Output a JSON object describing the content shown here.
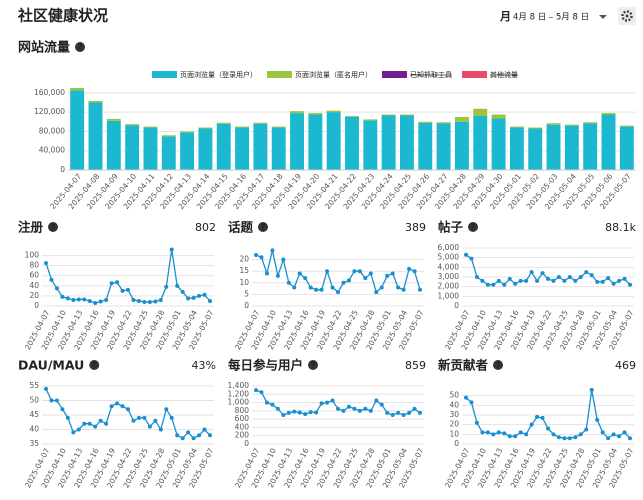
{
  "header": {
    "title": "社区健康状况",
    "period_unit": "月",
    "period": "4月 8 日 – 5月 8 日"
  },
  "help_icon": "?",
  "chart_data": [
    {
      "type": "stacked_bar",
      "title": "网站流量",
      "categories": [
        "2025-04-07",
        "2025-04-08",
        "2025-04-09",
        "2025-04-10",
        "2025-04-11",
        "2025-04-12",
        "2025-04-13",
        "2025-04-14",
        "2025-04-15",
        "2025-04-16",
        "2025-04-17",
        "2025-04-18",
        "2025-04-19",
        "2025-04-20",
        "2025-04-21",
        "2025-04-22",
        "2025-04-23",
        "2025-04-24",
        "2025-04-25",
        "2025-04-26",
        "2025-04-27",
        "2025-04-28",
        "2025-04-29",
        "2025-04-30",
        "2025-05-01",
        "2025-05-02",
        "2025-05-03",
        "2025-05-04",
        "2025-05-05",
        "2025-05-06",
        "2025-05-07"
      ],
      "series": [
        {
          "name": "页面浏览量（登录用户）",
          "color": "#1cb8d0",
          "values": [
            165000,
            140000,
            102000,
            93000,
            88000,
            70000,
            78000,
            86000,
            96000,
            88000,
            96000,
            88000,
            118000,
            115000,
            120000,
            110000,
            103000,
            113000,
            113000,
            98000,
            97000,
            100000,
            112000,
            107000,
            88000,
            86000,
            94000,
            92000,
            97000,
            115000,
            90000
          ]
        },
        {
          "name": "页面浏览量（匿名用户）",
          "color": "#9bc53d",
          "values": [
            5000,
            3000,
            4000,
            2000,
            2000,
            2000,
            2000,
            2000,
            2000,
            2000,
            2000,
            2000,
            4000,
            3000,
            3000,
            2000,
            2000,
            2000,
            2000,
            2000,
            2000,
            10000,
            15000,
            8000,
            2000,
            2000,
            3000,
            2000,
            2000,
            3000,
            2000
          ]
        },
        {
          "name": "已知抓取工具",
          "color": "#721d8d",
          "hidden": true
        },
        {
          "name": "其他流量",
          "color": "#e94b69",
          "hidden": true
        }
      ],
      "ylim": [
        0,
        170000
      ],
      "yticks": [
        0,
        {
          "value": 40000,
          "label": "40,000"
        },
        {
          "value": 80000,
          "label": "80,000"
        },
        {
          "value": 120000,
          "label": "120,000"
        },
        {
          "value": 160000,
          "label": "160,000"
        }
      ],
      "grid": true
    },
    {
      "type": "line",
      "title": "注册",
      "total": 802,
      "color": "#1a8fd0",
      "categories": [
        "2025-04-07",
        null,
        null,
        "2025-04-10",
        null,
        null,
        "2025-04-13",
        null,
        null,
        "2025-04-16",
        null,
        null,
        "2025-04-19",
        null,
        null,
        "2025-04-22",
        null,
        null,
        "2025-04-25",
        null,
        null,
        "2025-04-28",
        null,
        null,
        "2025-05-01",
        null,
        null,
        "2025-05-04",
        null,
        null,
        "2025-05-07"
      ],
      "values": [
        85,
        52,
        35,
        18,
        15,
        12,
        13,
        13,
        10,
        6,
        9,
        12,
        45,
        47,
        30,
        32,
        12,
        10,
        8,
        8,
        9,
        12,
        38,
        112,
        40,
        28,
        15,
        16,
        20,
        22,
        10
      ],
      "ylim": [
        0,
        115
      ],
      "yticks": [
        0,
        20,
        40,
        60,
        80,
        100
      ],
      "grid": true
    },
    {
      "type": "line",
      "title": "话题",
      "total": 389,
      "color": "#1a8fd0",
      "categories": [
        "2025-04-07",
        null,
        null,
        "2025-04-10",
        null,
        null,
        "2025-04-13",
        null,
        null,
        "2025-04-16",
        null,
        null,
        "2025-04-19",
        null,
        null,
        "2025-04-22",
        null,
        null,
        "2025-04-25",
        null,
        null,
        "2025-04-28",
        null,
        null,
        "2025-05-01",
        null,
        null,
        "2025-05-04",
        null,
        null,
        "2025-05-07"
      ],
      "values": [
        22,
        21,
        14,
        24,
        13,
        20,
        10,
        8,
        14,
        12,
        8,
        7,
        7,
        15,
        8,
        6,
        10,
        11,
        15,
        15,
        12,
        14,
        6,
        8,
        13,
        14,
        8,
        7,
        16,
        15,
        7
      ],
      "ylim": [
        0,
        25
      ],
      "yticks": [
        0,
        5,
        10,
        15,
        20
      ],
      "grid": true
    },
    {
      "type": "line",
      "title": "帖子",
      "total": 88100,
      "total_label": "88.1k",
      "color": "#1a8fd0",
      "categories": [
        "2025-04-07",
        null,
        null,
        "2025-04-10",
        null,
        null,
        "2025-04-13",
        null,
        null,
        "2025-04-16",
        null,
        null,
        "2025-04-19",
        null,
        null,
        "2025-04-22",
        null,
        null,
        "2025-04-25",
        null,
        null,
        "2025-04-28",
        null,
        null,
        "2025-05-01",
        null,
        null,
        "2025-05-04",
        null,
        null,
        "2025-05-07"
      ],
      "values": [
        5300,
        4900,
        3000,
        2600,
        2200,
        2200,
        2600,
        2200,
        2800,
        2300,
        2600,
        2600,
        3500,
        2600,
        3400,
        2800,
        2600,
        3000,
        2600,
        3000,
        2600,
        3000,
        3500,
        3200,
        2500,
        2500,
        2900,
        2300,
        2600,
        2800,
        2200
      ],
      "ylim": [
        0,
        6000
      ],
      "yticks": [
        0,
        {
          "value": 1000,
          "label": "1,000"
        },
        {
          "value": 2000,
          "label": "2,000"
        },
        {
          "value": 3000,
          "label": "3,000"
        },
        {
          "value": 4000,
          "label": "4,000"
        },
        {
          "value": 5000,
          "label": "5,000"
        },
        {
          "value": 6000,
          "label": "6,000"
        }
      ],
      "grid": true
    },
    {
      "type": "line",
      "title": "DAU/MAU",
      "total": 43,
      "total_label": "43%",
      "color": "#1a8fd0",
      "categories": [
        "2025-04-07",
        null,
        null,
        "2025-04-10",
        null,
        null,
        "2025-04-13",
        null,
        null,
        "2025-04-16",
        null,
        null,
        "2025-04-19",
        null,
        null,
        "2025-04-22",
        null,
        null,
        "2025-04-25",
        null,
        null,
        "2025-04-28",
        null,
        null,
        "2025-05-01",
        null,
        null,
        "2025-05-04",
        null,
        null,
        "2025-05-07"
      ],
      "values": [
        54,
        50,
        50,
        47,
        44,
        39,
        40,
        42,
        42,
        41,
        43,
        42,
        48,
        49,
        48,
        47,
        43,
        44,
        44,
        41,
        43,
        40,
        47,
        44,
        38,
        37,
        39,
        37,
        38,
        40,
        38
      ],
      "ylim": [
        35,
        55
      ],
      "yticks": [
        35,
        40,
        45,
        50,
        55
      ],
      "grid": true
    },
    {
      "type": "line",
      "title": "每日参与用户",
      "total": 859,
      "color": "#1a8fd0",
      "categories": [
        "2025-04-07",
        null,
        null,
        "2025-04-10",
        null,
        null,
        "2025-04-13",
        null,
        null,
        "2025-04-16",
        null,
        null,
        "2025-04-19",
        null,
        null,
        "2025-04-22",
        null,
        null,
        "2025-04-25",
        null,
        null,
        "2025-04-28",
        null,
        null,
        "2025-05-01",
        null,
        null,
        "2025-05-04",
        null,
        null,
        "2025-05-07"
      ],
      "values": [
        1300,
        1250,
        1000,
        950,
        850,
        700,
        750,
        780,
        760,
        720,
        770,
        760,
        980,
        1000,
        1050,
        850,
        800,
        900,
        850,
        800,
        850,
        800,
        1050,
        950,
        750,
        700,
        750,
        700,
        750,
        850,
        750
      ],
      "ylim": [
        0,
        1400
      ],
      "yticks": [
        0,
        200,
        400,
        600,
        800,
        {
          "value": 1000,
          "label": "1,000"
        },
        {
          "value": 1200,
          "label": "1,200"
        },
        {
          "value": 1400,
          "label": "1,400"
        }
      ],
      "grid": true
    },
    {
      "type": "line",
      "title": "新贡献者",
      "total": 469,
      "color": "#1a8fd0",
      "categories": [
        "2025-04-07",
        null,
        null,
        "2025-04-10",
        null,
        null,
        "2025-04-13",
        null,
        null,
        "2025-04-16",
        null,
        null,
        "2025-04-19",
        null,
        null,
        "2025-04-22",
        null,
        null,
        "2025-04-25",
        null,
        null,
        "2025-04-28",
        null,
        null,
        "2025-05-01",
        null,
        null,
        "2025-05-04",
        null,
        null,
        "2025-05-07"
      ],
      "values": [
        48,
        43,
        22,
        12,
        12,
        10,
        12,
        11,
        8,
        8,
        12,
        10,
        20,
        28,
        27,
        16,
        10,
        7,
        6,
        6,
        7,
        10,
        15,
        56,
        25,
        12,
        6,
        10,
        8,
        12,
        6
      ],
      "ylim": [
        0,
        60
      ],
      "yticks": [
        0,
        10,
        20,
        30,
        40,
        50
      ],
      "grid": true
    }
  ]
}
